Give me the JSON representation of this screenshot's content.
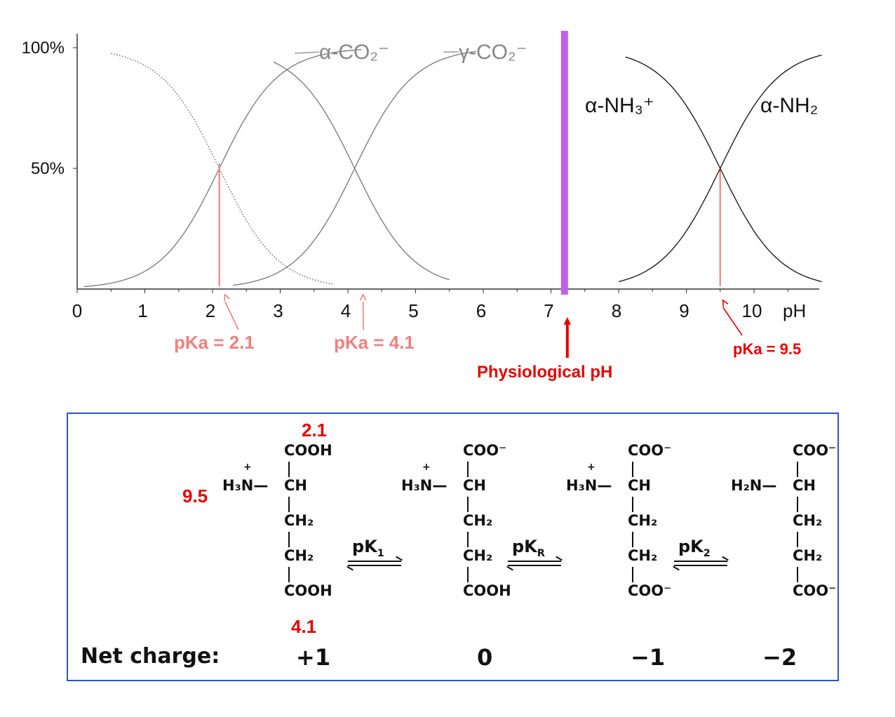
{
  "chart_data": {
    "type": "line",
    "xlabel": "pH",
    "x_ticks": [
      "0",
      "1",
      "2",
      "3",
      "4",
      "5",
      "6",
      "7",
      "8",
      "9",
      "10"
    ],
    "y_ticks": [
      "100%",
      "50%"
    ],
    "xlim": [
      0,
      11
    ],
    "ylim": [
      0,
      100
    ],
    "curve_labels": {
      "alpha_co2": "α-CO₂⁻",
      "gamma_co2": "γ-CO₂⁻",
      "alpha_nh3": "α-NH₃⁺",
      "alpha_nh2": "α-NH₂"
    },
    "series": [
      {
        "role": "alpha-COOH (protonated)",
        "pKa": 2.1,
        "x_range": [
          0.5,
          3.8
        ],
        "direction": "falling",
        "style": "dotted"
      },
      {
        "role": "alpha-CO2-",
        "pKa": 2.1,
        "x_range": [
          0.1,
          4.2
        ],
        "direction": "rising",
        "style": "solid-gray"
      },
      {
        "role": "gamma-COOH (protonated)",
        "pKa": 4.1,
        "x_range": [
          2.9,
          5.5
        ],
        "direction": "falling",
        "style": "solid-gray"
      },
      {
        "role": "gamma-CO2-",
        "pKa": 4.1,
        "x_range": [
          2.3,
          5.9
        ],
        "direction": "rising",
        "style": "solid-gray"
      },
      {
        "role": "alpha-NH3+",
        "pKa": 9.5,
        "x_range": [
          8.1,
          11.0
        ],
        "direction": "falling",
        "style": "solid-black"
      },
      {
        "role": "alpha-NH2",
        "pKa": 9.5,
        "x_range": [
          8.0,
          11.0
        ],
        "direction": "rising",
        "style": "solid-black"
      }
    ],
    "annotations": [
      {
        "text": "pKa = 2.1",
        "x": 2.1,
        "color": "#f08080"
      },
      {
        "text": "pKa = 4.1",
        "x": 4.1,
        "color": "#f08080"
      },
      {
        "text": "pKa = 9.5",
        "x": 9.5,
        "color": "#e60000"
      },
      {
        "text": "Physiological pH",
        "x": 7.2,
        "color": "#e60000"
      }
    ],
    "physiological_line": {
      "x": 7.2,
      "color": "#c060f0"
    }
  },
  "panel": {
    "net_charge_label": "Net charge:",
    "charges": [
      "+1",
      "0",
      "−1",
      "−2"
    ],
    "red_labels": {
      "top": "2.1",
      "left": "9.5",
      "bottom": "4.1"
    },
    "equilibria": [
      "pK",
      "pK",
      "pK"
    ],
    "eq_subs": [
      "1",
      "R",
      "2"
    ],
    "structures": [
      {
        "top": "COOH",
        "alpha": "CH",
        "amine": "H₃N",
        "ch2a": "CH₂",
        "ch2b": "CH₂",
        "bottom": "COOH",
        "plus": "+"
      },
      {
        "top": "COO⁻",
        "alpha": "CH",
        "amine": "H₃N",
        "ch2a": "CH₂",
        "ch2b": "CH₂",
        "bottom": "COOH",
        "plus": "+"
      },
      {
        "top": "COO⁻",
        "alpha": "CH",
        "amine": "H₃N",
        "ch2a": "CH₂",
        "ch2b": "CH₂",
        "bottom": "COO⁻",
        "plus": "+"
      },
      {
        "top": "COO⁻",
        "alpha": "CH",
        "amine": "H₂N",
        "ch2a": "CH₂",
        "ch2b": "CH₂",
        "bottom": "COO⁻",
        "plus": ""
      }
    ]
  },
  "colors": {
    "pka_light": "#f08080",
    "pka_red": "#e60000",
    "physio": "#c060f0",
    "panel_border": "#2a55c4"
  }
}
